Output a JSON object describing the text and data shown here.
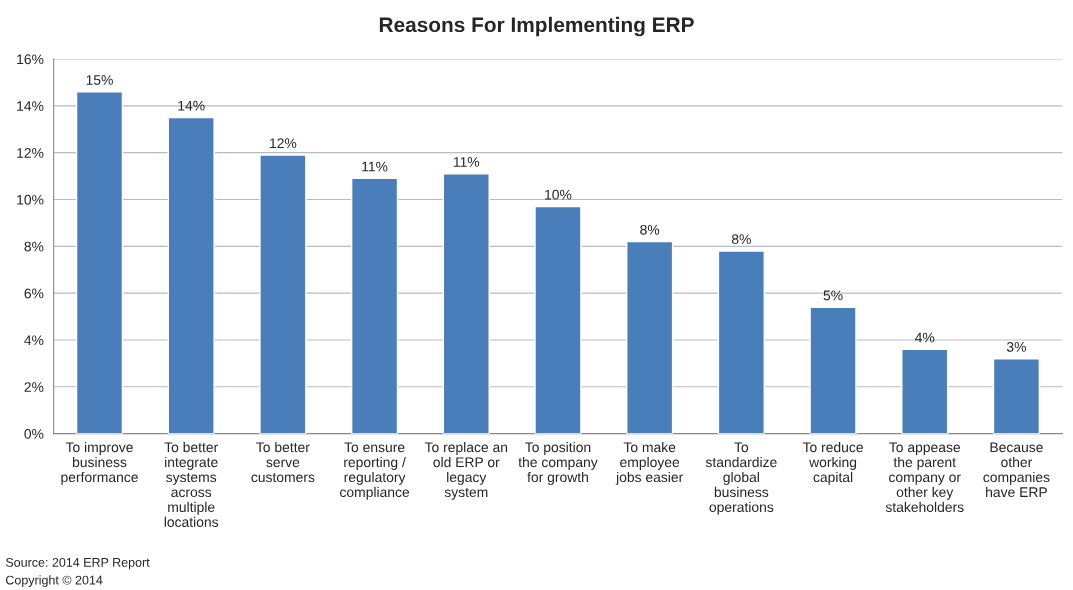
{
  "chart_data": {
    "type": "bar",
    "title": "Reasons For Implementing ERP",
    "categories": [
      "To improve\nbusiness\nperformance",
      "To better\nintegrate\nsystems\nacross\nmultiple\nlocations",
      "To better\nserve\ncustomers",
      "To ensure\nreporting /\nregulatory\ncompliance",
      "To replace an\nold ERP or\nlegacy\nsystem",
      "To position\nthe company\nfor growth",
      "To make\nemployee\njobs easier",
      "To\nstandardize\nglobal\nbusiness\noperations",
      "To reduce\nworking\ncapital",
      "To appease\nthe parent\ncompany or\nother key\nstakeholders",
      "Because\nother\ncompanies\nhave ERP"
    ],
    "values": [
      14.6,
      13.5,
      11.9,
      10.9,
      11.1,
      9.7,
      8.2,
      7.8,
      5.4,
      3.6,
      3.2
    ],
    "value_labels": [
      "15%",
      "14%",
      "12%",
      "11%",
      "11%",
      "10%",
      "8%",
      "8%",
      "5%",
      "4%",
      "3%"
    ],
    "color": "#4a7ebb",
    "ylim": [
      0,
      16
    ],
    "yticks": [
      {
        "value": 0,
        "label": "0%"
      },
      {
        "value": 2,
        "label": "2%"
      },
      {
        "value": 4,
        "label": "4%"
      },
      {
        "value": 6,
        "label": "6%"
      },
      {
        "value": 8,
        "label": "8%"
      },
      {
        "value": 10,
        "label": "10%"
      },
      {
        "value": 12,
        "label": "12%"
      },
      {
        "value": 14,
        "label": "14%"
      },
      {
        "value": 16,
        "label": "16%"
      }
    ],
    "grid": "y",
    "annotations": [
      "Source: 2014 ERP Report",
      "Copyright © 2014"
    ]
  }
}
